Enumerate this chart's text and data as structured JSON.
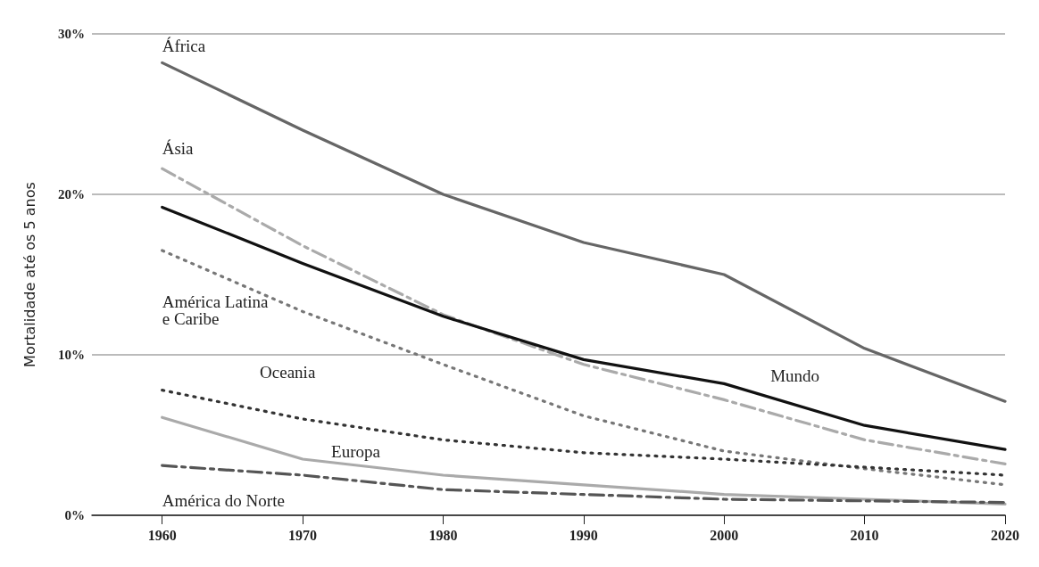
{
  "chart_data": {
    "type": "line",
    "ylabel": "Mortalidade até os 5 anos",
    "x": [
      1960,
      1970,
      1980,
      1990,
      2000,
      2010,
      2020
    ],
    "xlim": [
      1955,
      2020
    ],
    "xticks": [
      1960,
      1970,
      1980,
      1990,
      2000,
      2010,
      2020
    ],
    "ylim": [
      0,
      30
    ],
    "yticks": [
      {
        "value": 0,
        "label": "0%"
      },
      {
        "value": 10,
        "label": "10%"
      },
      {
        "value": 20,
        "label": "20%"
      },
      {
        "value": 30,
        "label": "30%"
      }
    ],
    "grid": "y",
    "legend": false,
    "marker": "none",
    "series": [
      {
        "name": "África",
        "color": "#666666",
        "line_style": "solid",
        "values": [
          28.2,
          24.0,
          20.0,
          17.0,
          15.0,
          10.4,
          7.1
        ]
      },
      {
        "name": "Ásia",
        "color": "#aaaaaa",
        "line_style": "dashdot",
        "values": [
          21.6,
          16.8,
          12.5,
          9.4,
          7.2,
          4.7,
          3.2
        ]
      },
      {
        "name": "Mundo",
        "color": "#111111",
        "line_style": "solid",
        "values": [
          19.2,
          15.7,
          12.4,
          9.7,
          8.2,
          5.6,
          4.1
        ]
      },
      {
        "name": "América Latina e Caribe",
        "color": "#777777",
        "line_style": "dotted",
        "values": [
          16.5,
          12.7,
          9.4,
          6.2,
          4.0,
          2.9,
          1.9
        ]
      },
      {
        "name": "Oceania",
        "color": "#333333",
        "line_style": "dotted",
        "values": [
          7.8,
          6.0,
          4.7,
          3.9,
          3.5,
          3.0,
          2.5
        ]
      },
      {
        "name": "Europa",
        "color": "#aaaaaa",
        "line_style": "solid",
        "values": [
          6.1,
          3.5,
          2.5,
          1.9,
          1.3,
          1.0,
          0.7
        ]
      },
      {
        "name": "América do Norte",
        "color": "#555555",
        "line_style": "dashdot",
        "values": [
          3.1,
          2.5,
          1.6,
          1.3,
          1.0,
          0.9,
          0.8
        ]
      }
    ]
  }
}
